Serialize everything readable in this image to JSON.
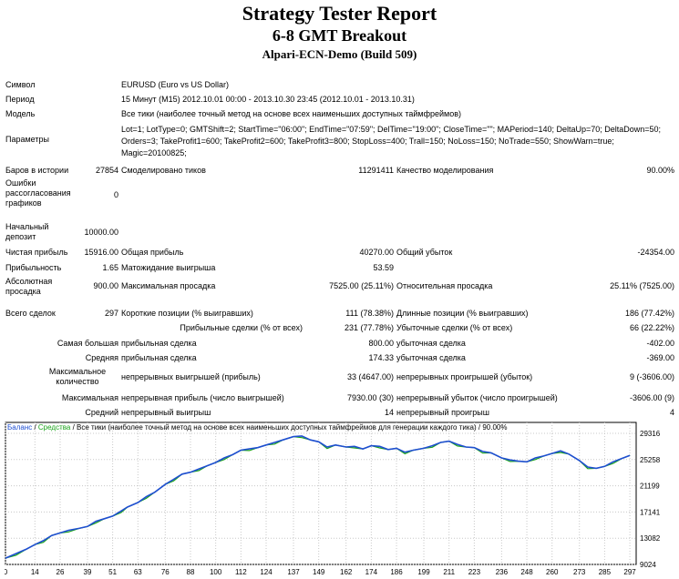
{
  "report": {
    "title": "Strategy Tester Report",
    "subtitle": "6-8 GMT Breakout",
    "server": "Alpari-ECN-Demo (Build 509)"
  },
  "info": {
    "symbol_label": "Символ",
    "symbol_value": "EURUSD (Euro vs US Dollar)",
    "period_label": "Период",
    "period_value": "15 Минут (M15) 2012.10.01 00:00 - 2013.10.30 23:45 (2012.10.01 - 2013.10.31)",
    "model_label": "Модель",
    "model_value": "Все тики (наиболее точный метод на основе всех наименьших доступных таймфреймов)",
    "params_label": "Параметры",
    "params_value": "Lot=1; LotType=0; GMTShift=2; StartTime=\"06:00\"; EndTime=\"07:59\"; DelTime=\"19:00\"; CloseTime=\"\"; MAPeriod=140; DeltaUp=70; DeltaDown=50; Orders=3; TakeProfit1=600; TakeProfit2=600; TakeProfit3=800; StopLoss=400; Trall=150; NoLoss=150; NoTrade=550; ShowWarn=true; Magic=20100825;"
  },
  "stats": {
    "bars_label": "Баров в истории",
    "bars_value": "27854",
    "ticks_label": "Смоделировано тиков",
    "ticks_value": "11291411",
    "quality_label": "Качество моделирования",
    "quality_value": "90.00%",
    "errors_label": "Ошибки рассогласования графиков",
    "errors_value": "0",
    "deposit_label": "Начальный депозит",
    "deposit_value": "10000.00",
    "net_label": "Чистая прибыль",
    "net_value": "15916.00",
    "gross_profit_label": "Общая прибыль",
    "gross_profit_value": "40270.00",
    "gross_loss_label": "Общий убыток",
    "gross_loss_value": "-24354.00",
    "pf_label": "Прибыльность",
    "pf_value": "1.65",
    "exp_label": "Матожидание выигрыша",
    "exp_value": "53.59",
    "abs_dd_label": "Абсолютная просадка",
    "abs_dd_value": "900.00",
    "max_dd_label": "Максимальная просадка",
    "max_dd_value": "7525.00 (25.11%)",
    "rel_dd_label": "Относительная просадка",
    "rel_dd_value": "25.11% (7525.00)",
    "total_label": "Всего сделок",
    "total_value": "297",
    "short_label": "Короткие позиции (% выигравших)",
    "short_value": "111 (78.38%)",
    "long_label": "Длинные позиции (% выигравших)",
    "long_value": "186 (77.42%)",
    "profit_trades_label": "Прибыльные сделки (% от всех)",
    "profit_trades_value": "231 (77.78%)",
    "loss_trades_label": "Убыточные сделки (% от всех)",
    "loss_trades_value": "66 (22.22%)",
    "largest_label": "Самая большая",
    "largest_profit_label": "прибыльная сделка",
    "largest_profit_value": "800.00",
    "largest_loss_label": "убыточная сделка",
    "largest_loss_value": "-402.00",
    "average_label": "Средняя",
    "average_profit_label": "прибыльная сделка",
    "average_profit_value": "174.33",
    "average_loss_label": "убыточная сделка",
    "average_loss_value": "-369.00",
    "maxcount_label": "Максимальное количество",
    "cons_wins_label": "непрерывных выигрышей (прибыль)",
    "cons_wins_value": "33 (4647.00)",
    "cons_losses_label": "непрерывных проигрышей (убыток)",
    "cons_losses_value": "9 (-3606.00)",
    "maximal_label": "Максимальная",
    "cons_profit_label": "непрерывная прибыль (число выигрышей)",
    "cons_profit_value": "7930.00 (30)",
    "cons_loss_label": "непрерывный убыток (число проигрышей)",
    "cons_loss_value": "-3606.00 (9)",
    "avg_cons_label": "Средний",
    "avg_cons_wins_label": "непрерывный выигрыш",
    "avg_cons_wins_value": "14",
    "avg_cons_losses_label": "непрерывный проигрыш",
    "avg_cons_losses_value": "4"
  },
  "chart_data": {
    "type": "line",
    "legend_balance": "Баланс",
    "legend_sep1": " / ",
    "legend_equity": "Средства",
    "legend_rest": " / Все тики (наиболее точный метод на основе всех наименьших доступных таймфреймов для генерации каждого тика) / 90.00%",
    "x_ticks": [
      "0",
      "14",
      "26",
      "39",
      "51",
      "63",
      "76",
      "88",
      "100",
      "112",
      "124",
      "137",
      "149",
      "162",
      "174",
      "186",
      "199",
      "211",
      "223",
      "236",
      "248",
      "260",
      "273",
      "285",
      "297"
    ],
    "y_ticks": [
      "29316",
      "25258",
      "21199",
      "17141",
      "13082",
      "9024"
    ],
    "ylim": [
      9024,
      31000
    ],
    "xlim": [
      0,
      300
    ],
    "colors": {
      "balance": "#1f4fd1",
      "equity": "#1ba31b",
      "grid": "#c8c8c8"
    },
    "series": [
      {
        "name": "Баланс",
        "x": [
          0,
          5,
          10,
          14,
          18,
          22,
          26,
          30,
          35,
          39,
          43,
          47,
          51,
          55,
          58,
          63,
          67,
          71,
          76,
          80,
          84,
          88,
          92,
          96,
          100,
          104,
          108,
          112,
          116,
          120,
          124,
          128,
          132,
          137,
          141,
          145,
          149,
          153,
          157,
          162,
          166,
          170,
          174,
          178,
          182,
          186,
          190,
          194,
          199,
          203,
          207,
          211,
          215,
          219,
          223,
          227,
          231,
          236,
          240,
          244,
          248,
          252,
          256,
          260,
          264,
          268,
          273,
          277,
          281,
          285,
          289,
          293,
          297
        ],
        "values": [
          10000,
          10700,
          11400,
          12100,
          12700,
          13500,
          13900,
          14300,
          14600,
          14900,
          15700,
          16100,
          16500,
          17300,
          17900,
          18600,
          19500,
          20200,
          21400,
          22200,
          23000,
          23300,
          23800,
          24300,
          24800,
          25500,
          26000,
          26700,
          26900,
          27100,
          27500,
          27900,
          28300,
          28800,
          28900,
          28300,
          28000,
          27200,
          27500,
          27200,
          27300,
          26900,
          27400,
          27300,
          26800,
          27000,
          26400,
          26700,
          27000,
          27400,
          27900,
          28100,
          27600,
          27200,
          27100,
          26500,
          26300,
          25500,
          25200,
          25000,
          24900,
          25500,
          25800,
          26200,
          26600,
          26100,
          25100,
          24100,
          23900,
          24200,
          24900,
          25400,
          25900
        ]
      }
    ]
  }
}
